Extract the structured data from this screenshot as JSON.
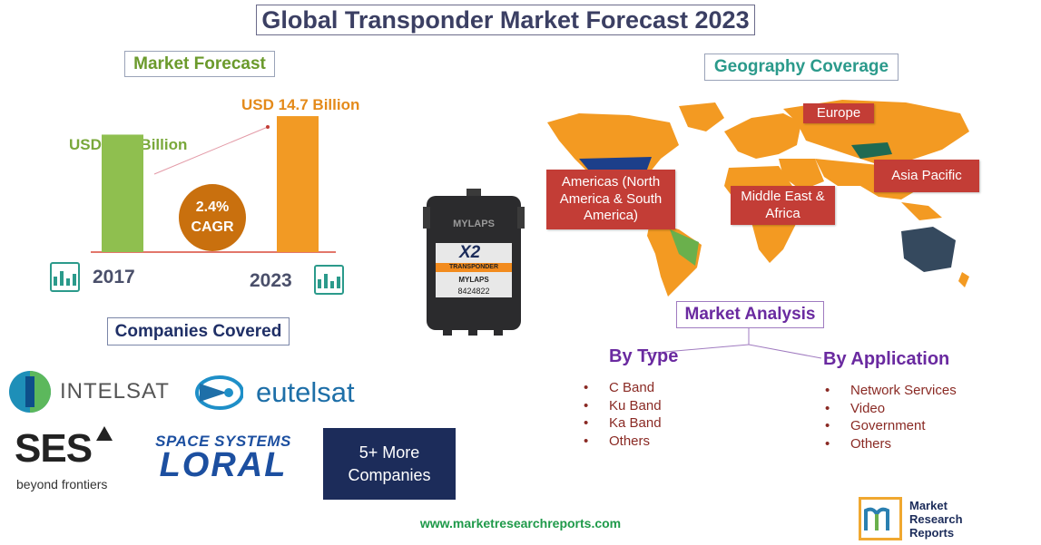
{
  "title": "Global Transponder Market Forecast 2023",
  "market_forecast": {
    "label": "Market Forecast",
    "value_2017": "USD 12.7 Billion",
    "value_2023": "USD 14.7 Billion",
    "cagr_value": "2.4%",
    "cagr_label": "CAGR",
    "year_2017": "2017",
    "year_2023": "2023",
    "colors": {
      "bar_2017": "#8fbf4f",
      "bar_2023": "#f29a24",
      "cagr": "#c9700e"
    }
  },
  "chart_data": {
    "type": "bar",
    "categories": [
      "2017",
      "2023"
    ],
    "values": [
      12.7,
      14.7
    ],
    "data_labels": [
      "USD 12.7 Billion",
      "USD 14.7 Billion"
    ],
    "ylim": [
      0,
      15
    ],
    "grid": false
  },
  "geography": {
    "label": "Geography Coverage",
    "regions": {
      "americas": "Americas (North America & South America)",
      "europe": "Europe",
      "asia_pacific": "Asia Pacific",
      "middle_east": "Middle East & Africa"
    }
  },
  "product": {
    "brand_top": "MYLAPS",
    "model": "X2",
    "type_label": "TRANSPONDER",
    "brand_bottom": "MYLAPS",
    "serial": "8424822"
  },
  "market_analysis": {
    "label": "Market Analysis",
    "by_type": {
      "heading": "By Type",
      "items": [
        "C Band",
        "Ku Band",
        "Ka Band",
        "Others"
      ]
    },
    "by_application": {
      "heading": "By Application",
      "items": [
        "Network Services",
        "Video",
        "Government",
        "Others"
      ]
    }
  },
  "companies": {
    "label": "Companies Covered",
    "intelsat": "INTELSAT",
    "eutelsat": "eutelsat",
    "ses": "SES",
    "ses_tagline": "beyond frontiers",
    "ssl_top": "SPACE SYSTEMS",
    "ssl_bottom": "LORAL",
    "more": "5+ More Companies"
  },
  "footer": {
    "url": "www.marketresearchreports.com"
  },
  "mrr_logo": {
    "line1": "Market",
    "line2": "Research",
    "line3": "Reports"
  }
}
